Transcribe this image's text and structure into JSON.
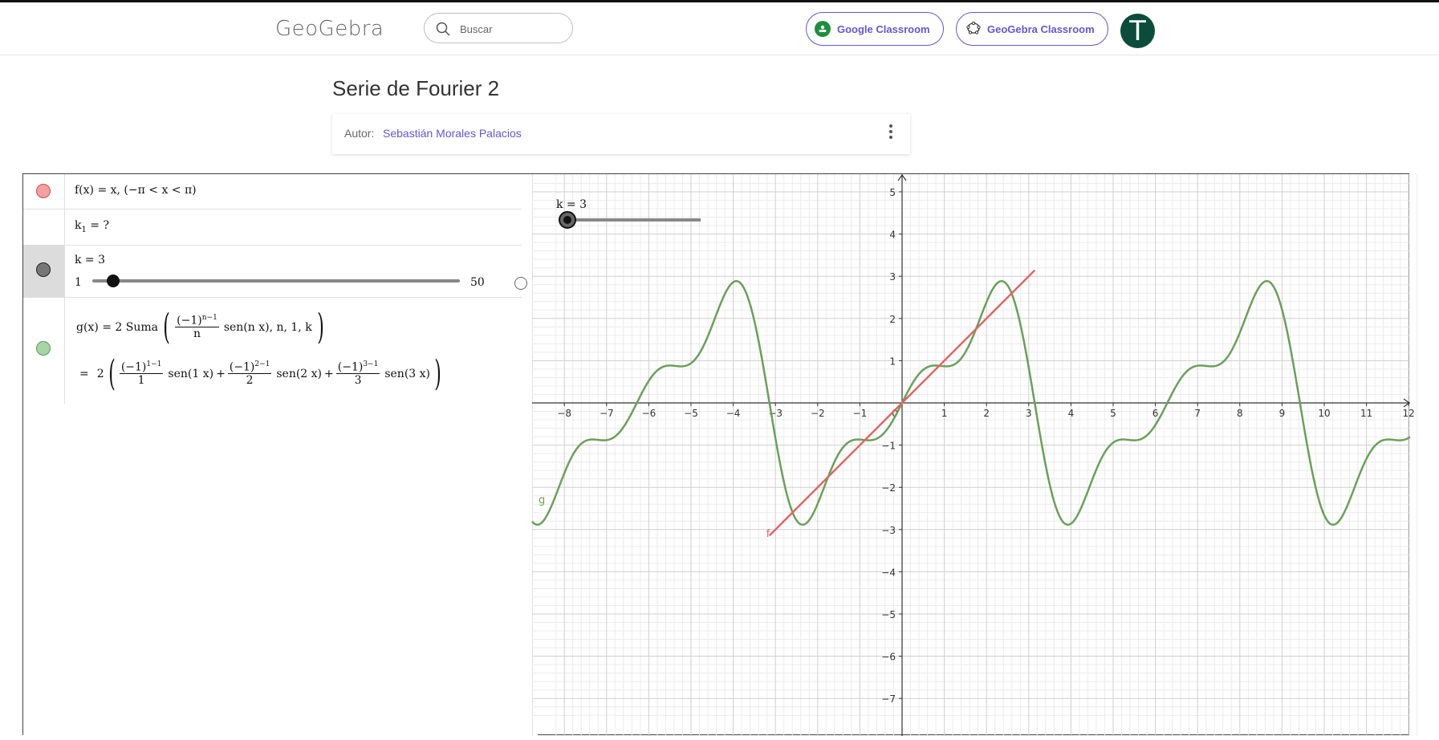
{
  "header": {
    "logo_text": "GeoGebra",
    "search_placeholder": "Buscar",
    "google_classroom_label": "Google Classroom",
    "geogebra_classroom_label": "GeoGebra Classroom",
    "avatar_letter": "T"
  },
  "page": {
    "title": "Serie de Fourier 2",
    "author_label": "Autor:",
    "author_name": "Sebastián Morales Palacios"
  },
  "algebra": {
    "f_def": "f(x) = x,   (−π < x < π)",
    "k1_label": "k",
    "k1_sub": "1",
    "k1_rest": " = ?",
    "k_label": "k = 3",
    "k_min": "1",
    "k_max": "50",
    "k_value": 3,
    "g_def_prefix": "g(x)  =  2 Suma",
    "g_def_args": "sen(n x), n, 1, k",
    "g_expand_eq": "=",
    "g_expand_coef": "2",
    "terms": [
      {
        "num": "(−1)",
        "exp": "1−1",
        "den": "1",
        "fn": "sen(1 x)"
      },
      {
        "num": "(−1)",
        "exp": "2−1",
        "den": "2",
        "fn": "sen(2 x)"
      },
      {
        "num": "(−1)",
        "exp": "3−1",
        "den": "3",
        "fn": "sen(3 x)"
      }
    ],
    "g_general": {
      "num": "(−1)",
      "exp": "n−1",
      "den": "n"
    }
  },
  "graphics": {
    "slider_label": "k = 3",
    "f_label": "f",
    "g_label": "g",
    "x_ticks": [
      "−8",
      "−7",
      "−6",
      "−5",
      "−4",
      "−3",
      "−2",
      "−1",
      "1",
      "2",
      "3",
      "4",
      "5",
      "6",
      "7",
      "8",
      "9",
      "10",
      "11",
      "12"
    ],
    "y_ticks": [
      "5",
      "4",
      "3",
      "2",
      "1",
      "−1",
      "−2",
      "−3",
      "−4",
      "−5",
      "−6",
      "−7"
    ],
    "origin_label": "0"
  },
  "chart_data": {
    "type": "line",
    "title": "",
    "xlim": [
      -8.3,
      12.3
    ],
    "ylim": [
      -7.4,
      5.4
    ],
    "grid": true,
    "series": [
      {
        "name": "f",
        "expression": "f(x) = x, −π < x < π",
        "color": "#e06666",
        "domain": [
          -3.14159,
          3.14159
        ]
      },
      {
        "name": "g",
        "expression": "g(x) = 2(sin(x) − sin(2x)/2 + sin(3x)/3)",
        "color": "#6aa05a",
        "terms": 3
      }
    ]
  },
  "colors": {
    "accent": "#6557d2",
    "f_color": "#e06666",
    "g_color": "#6aa05a",
    "slider_color": "#555555"
  }
}
